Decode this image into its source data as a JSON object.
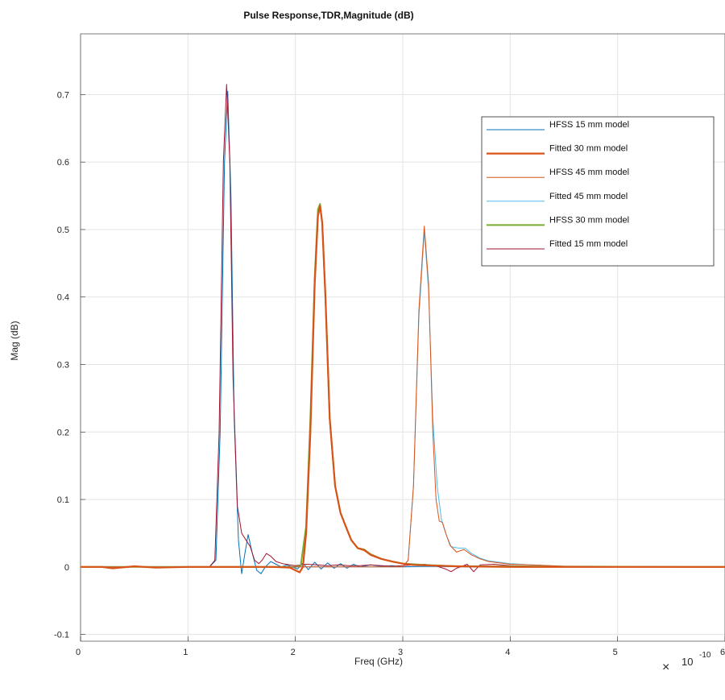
{
  "chart_data": {
    "type": "line",
    "title": "Pulse Response,TDR,Magnitude (dB)",
    "xlabel": "Freq (GHz)",
    "ylabel": "Mag (dB)",
    "x_exponent_base": "×",
    "x_exponent_ten": "10",
    "x_exponent_power": "-10",
    "xlim": [
      0,
      6
    ],
    "ylim": [
      -0.11,
      0.79
    ],
    "x_ticks": [
      0,
      1,
      2,
      3,
      4,
      5,
      6
    ],
    "x_tick_labels": [
      "0",
      "1",
      "2",
      "3",
      "4",
      "5",
      "6"
    ],
    "y_ticks": [
      -0.1,
      0,
      0.1,
      0.2,
      0.3,
      0.4,
      0.5,
      0.6,
      0.7
    ],
    "y_tick_labels": [
      "-0.1",
      "0",
      "0.1",
      "0.2",
      "0.3",
      "0.4",
      "0.5",
      "0.6",
      "0.7"
    ],
    "grid": true,
    "legend_position": "top-right",
    "series": [
      {
        "name": "HFSS 15 mm model",
        "color": "#0072BD",
        "width": 1.0,
        "points": [
          [
            0,
            0
          ],
          [
            1.2,
            0
          ],
          [
            1.26,
            0.01
          ],
          [
            1.3,
            0.2
          ],
          [
            1.34,
            0.6
          ],
          [
            1.37,
            0.705
          ],
          [
            1.4,
            0.55
          ],
          [
            1.43,
            0.22
          ],
          [
            1.47,
            0.04
          ],
          [
            1.5,
            -0.01
          ],
          [
            1.53,
            0.02
          ],
          [
            1.56,
            0.048
          ],
          [
            1.6,
            0.02
          ],
          [
            1.64,
            -0.005
          ],
          [
            1.68,
            -0.01
          ],
          [
            1.72,
            0.0
          ],
          [
            1.77,
            0.008
          ],
          [
            1.82,
            0.004
          ],
          [
            1.87,
            0.0
          ],
          [
            1.92,
            0.003
          ],
          [
            1.97,
            0.0
          ],
          [
            2.02,
            -0.003
          ],
          [
            2.07,
            0.006
          ],
          [
            2.12,
            -0.004
          ],
          [
            2.18,
            0.007
          ],
          [
            2.24,
            -0.003
          ],
          [
            2.3,
            0.006
          ],
          [
            2.36,
            -0.002
          ],
          [
            2.42,
            0.005
          ],
          [
            2.48,
            -0.002
          ],
          [
            2.54,
            0.004
          ],
          [
            2.6,
            0.0
          ],
          [
            2.7,
            0.003
          ],
          [
            2.8,
            0.001
          ],
          [
            2.9,
            0.002
          ],
          [
            3.0,
            0.0
          ],
          [
            3.2,
            0.001
          ],
          [
            3.6,
            0.0
          ],
          [
            4.0,
            0.0
          ],
          [
            6,
            0
          ]
        ]
      },
      {
        "name": "Fitted 30 mm model",
        "color": "#D95319",
        "width": 2.2,
        "points": [
          [
            0,
            0
          ],
          [
            0.2,
            0.0
          ],
          [
            0.3,
            -0.002
          ],
          [
            0.5,
            0.001
          ],
          [
            0.7,
            -0.001
          ],
          [
            1.0,
            0.0
          ],
          [
            1.5,
            0.0
          ],
          [
            1.8,
            0.0
          ],
          [
            1.95,
            -0.001
          ],
          [
            2.0,
            -0.005
          ],
          [
            2.04,
            -0.008
          ],
          [
            2.07,
            0.0
          ],
          [
            2.1,
            0.05
          ],
          [
            2.14,
            0.2
          ],
          [
            2.18,
            0.42
          ],
          [
            2.21,
            0.52
          ],
          [
            2.23,
            0.535
          ],
          [
            2.25,
            0.51
          ],
          [
            2.28,
            0.4
          ],
          [
            2.32,
            0.22
          ],
          [
            2.37,
            0.12
          ],
          [
            2.42,
            0.08
          ],
          [
            2.47,
            0.06
          ],
          [
            2.52,
            0.04
          ],
          [
            2.58,
            0.028
          ],
          [
            2.64,
            0.025
          ],
          [
            2.7,
            0.018
          ],
          [
            2.8,
            0.012
          ],
          [
            2.9,
            0.008
          ],
          [
            3.0,
            0.005
          ],
          [
            3.1,
            0.003
          ],
          [
            3.3,
            0.002
          ],
          [
            3.5,
            0.001
          ],
          [
            4.0,
            0.0
          ],
          [
            6,
            0
          ]
        ]
      },
      {
        "name": "HFSS 45 mm model",
        "color": "#D95319",
        "width": 1.0,
        "points": [
          [
            0,
            0
          ],
          [
            3.0,
            0
          ],
          [
            3.05,
            0.01
          ],
          [
            3.1,
            0.12
          ],
          [
            3.15,
            0.38
          ],
          [
            3.2,
            0.505
          ],
          [
            3.24,
            0.42
          ],
          [
            3.28,
            0.2
          ],
          [
            3.31,
            0.1
          ],
          [
            3.34,
            0.068
          ],
          [
            3.37,
            0.066
          ],
          [
            3.4,
            0.05
          ],
          [
            3.44,
            0.032
          ],
          [
            3.5,
            0.022
          ],
          [
            3.57,
            0.026
          ],
          [
            3.64,
            0.018
          ],
          [
            3.72,
            0.012
          ],
          [
            3.8,
            0.008
          ],
          [
            3.9,
            0.006
          ],
          [
            4.0,
            0.004
          ],
          [
            4.2,
            0.003
          ],
          [
            4.5,
            0.001
          ],
          [
            5.0,
            0.0
          ],
          [
            6,
            0
          ]
        ]
      },
      {
        "name": "Fitted 45 mm model",
        "color": "#4DBEEE",
        "width": 1.0,
        "points": [
          [
            0,
            0
          ],
          [
            3.0,
            0
          ],
          [
            3.05,
            0.01
          ],
          [
            3.1,
            0.12
          ],
          [
            3.15,
            0.37
          ],
          [
            3.2,
            0.497
          ],
          [
            3.24,
            0.41
          ],
          [
            3.28,
            0.22
          ],
          [
            3.32,
            0.12
          ],
          [
            3.36,
            0.07
          ],
          [
            3.4,
            0.05
          ],
          [
            3.45,
            0.03
          ],
          [
            3.52,
            0.028
          ],
          [
            3.58,
            0.028
          ],
          [
            3.64,
            0.02
          ],
          [
            3.72,
            0.013
          ],
          [
            3.8,
            0.009
          ],
          [
            3.9,
            0.007
          ],
          [
            4.0,
            0.005
          ],
          [
            4.2,
            0.003
          ],
          [
            4.5,
            0.001
          ],
          [
            5.0,
            0.0
          ],
          [
            6,
            0
          ]
        ]
      },
      {
        "name": "HFSS 30 mm model",
        "color": "#77AC30",
        "width": 2.0,
        "points": [
          [
            0,
            0
          ],
          [
            2.0,
            0
          ],
          [
            2.05,
            0.002
          ],
          [
            2.1,
            0.06
          ],
          [
            2.14,
            0.22
          ],
          [
            2.18,
            0.43
          ],
          [
            2.21,
            0.53
          ],
          [
            2.23,
            0.538
          ],
          [
            2.25,
            0.51
          ],
          [
            2.28,
            0.4
          ],
          [
            2.32,
            0.22
          ],
          [
            2.37,
            0.12
          ],
          [
            2.42,
            0.08
          ],
          [
            2.47,
            0.06
          ],
          [
            2.52,
            0.04
          ],
          [
            2.58,
            0.028
          ],
          [
            2.64,
            0.026
          ],
          [
            2.7,
            0.019
          ],
          [
            2.8,
            0.012
          ],
          [
            2.9,
            0.008
          ],
          [
            3.0,
            0.005
          ],
          [
            3.2,
            0.003
          ],
          [
            3.5,
            0.001
          ],
          [
            6,
            0
          ]
        ]
      },
      {
        "name": "Fitted 15 mm model",
        "color": "#A2142F",
        "width": 1.0,
        "points": [
          [
            0,
            0
          ],
          [
            1.2,
            0
          ],
          [
            1.25,
            0.01
          ],
          [
            1.29,
            0.2
          ],
          [
            1.33,
            0.6
          ],
          [
            1.36,
            0.715
          ],
          [
            1.39,
            0.6
          ],
          [
            1.42,
            0.28
          ],
          [
            1.46,
            0.09
          ],
          [
            1.5,
            0.05
          ],
          [
            1.54,
            0.04
          ],
          [
            1.58,
            0.03
          ],
          [
            1.62,
            0.01
          ],
          [
            1.66,
            0.005
          ],
          [
            1.69,
            0.01
          ],
          [
            1.73,
            0.02
          ],
          [
            1.77,
            0.016
          ],
          [
            1.82,
            0.008
          ],
          [
            1.88,
            0.005
          ],
          [
            1.95,
            0.003
          ],
          [
            2.0,
            0.002
          ],
          [
            2.1,
            0.004
          ],
          [
            2.2,
            0.003
          ],
          [
            2.3,
            0.002
          ],
          [
            2.4,
            0.003
          ],
          [
            2.5,
            0.002
          ],
          [
            2.6,
            0.002
          ],
          [
            2.7,
            0.003
          ],
          [
            2.8,
            0.002
          ],
          [
            2.9,
            0.001
          ],
          [
            3.0,
            0.002
          ],
          [
            3.2,
            0.004
          ],
          [
            3.3,
            0.002
          ],
          [
            3.4,
            -0.003
          ],
          [
            3.45,
            -0.007
          ],
          [
            3.5,
            -0.002
          ],
          [
            3.6,
            0.004
          ],
          [
            3.66,
            -0.007
          ],
          [
            3.72,
            0.003
          ],
          [
            3.85,
            0.004
          ],
          [
            4.0,
            0.002
          ],
          [
            4.3,
            0.001
          ],
          [
            5.0,
            0.0
          ],
          [
            6,
            0
          ]
        ]
      }
    ]
  }
}
